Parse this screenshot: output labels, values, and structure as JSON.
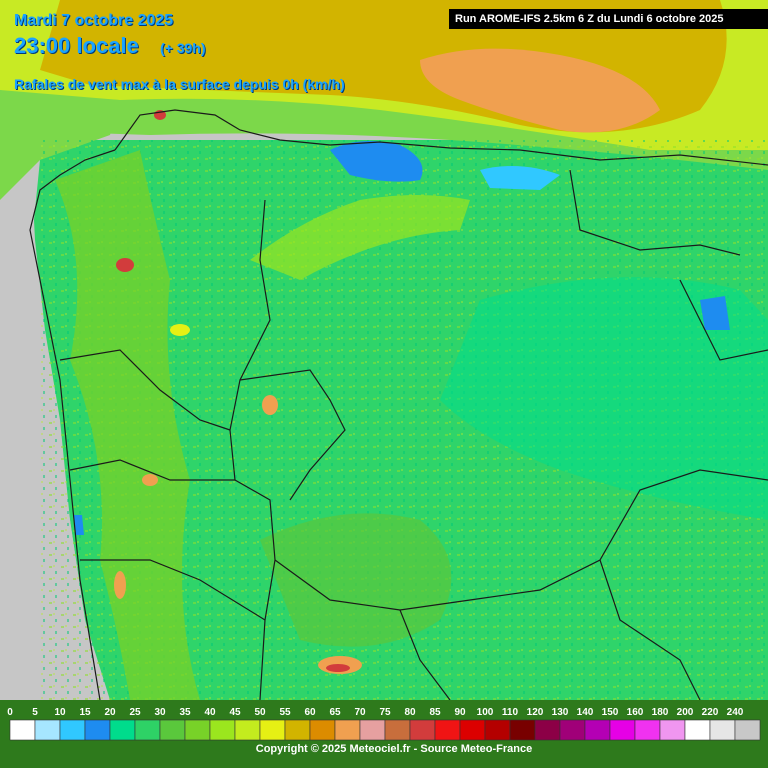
{
  "header": {
    "date": "Mardi 7 octobre 2025",
    "time": "23:00 locale",
    "lead": "(+ 39h)",
    "parameter": "Rafales de vent max à la surface depuis 0h (km/h)"
  },
  "run_info": "Run AROME-IFS 2.5km 6 Z du Lundi 6 octobre 2025",
  "legend": {
    "labels": [
      "0",
      "5",
      "10",
      "15",
      "20",
      "25",
      "30",
      "35",
      "40",
      "45",
      "50",
      "55",
      "60",
      "65",
      "70",
      "75",
      "80",
      "85",
      "90",
      "100",
      "110",
      "120",
      "130",
      "140",
      "150",
      "160",
      "180",
      "200",
      "220",
      "240"
    ],
    "colors": [
      "#ffffff",
      "#a6e6ff",
      "#30c8ff",
      "#1e8cf0",
      "#00dc8c",
      "#2ed266",
      "#5ac83c",
      "#78d228",
      "#9be61e",
      "#c3ec1e",
      "#e6f014",
      "#d2b400",
      "#dc8c00",
      "#f0a050",
      "#e6a0a0",
      "#c86e3c",
      "#d23c3c",
      "#f01414",
      "#dc0000",
      "#b40000",
      "#780000",
      "#8c0046",
      "#a00078",
      "#b400b4",
      "#e600e6",
      "#f032f0",
      "#f096f0",
      "#ffffff",
      "#e6e6e6",
      "#c8c8c8"
    ]
  },
  "copyright": "Copyright © 2025 Meteociel.fr - Source Meteo-France"
}
